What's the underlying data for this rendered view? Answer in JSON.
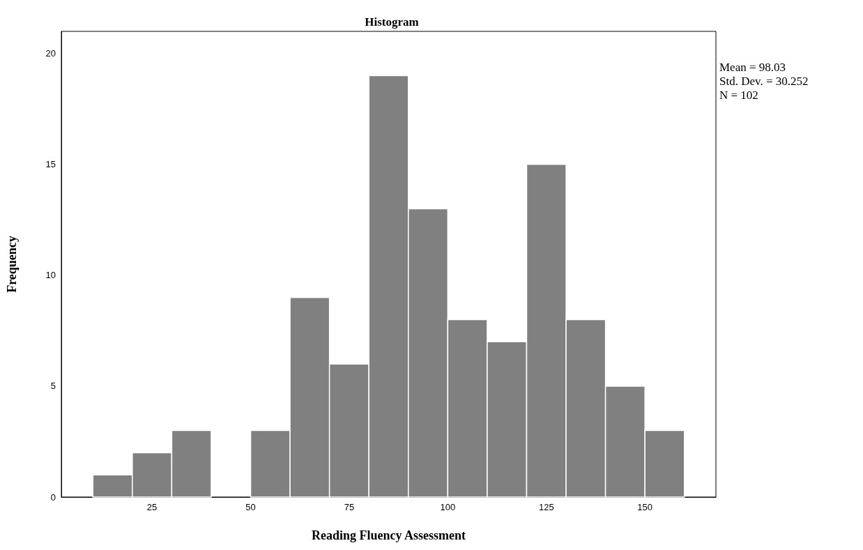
{
  "chart_data": {
    "type": "histogram",
    "title": "Histogram",
    "xlabel": "Reading Fluency Assessment",
    "ylabel": "Frequency",
    "bins": [
      10,
      20,
      30,
      40,
      50,
      60,
      70,
      80,
      90,
      100,
      110,
      120,
      130,
      140,
      150,
      160
    ],
    "values": [
      1,
      2,
      3,
      0,
      3,
      9,
      6,
      19,
      13,
      8,
      7,
      15,
      8,
      5,
      3
    ],
    "color": "#808080",
    "xlim": [
      2,
      168
    ],
    "xticks": [
      25,
      50,
      75,
      100,
      125,
      150
    ],
    "ylim": [
      0,
      21
    ],
    "yticks": [
      0,
      5,
      10,
      15,
      20
    ],
    "grid": false,
    "annotations": [
      "Mean = 98.03",
      "Std. Dev. = 30.252",
      "N = 102"
    ]
  }
}
